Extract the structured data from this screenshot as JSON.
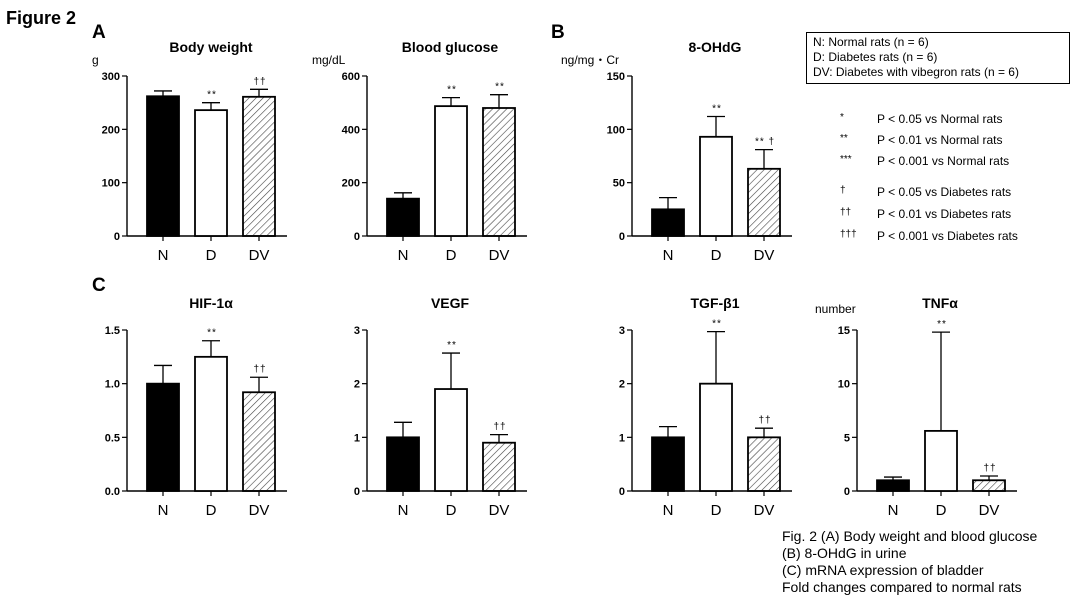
{
  "figure_label": "Figure 2",
  "panel_letters": {
    "a": "A",
    "b": "B",
    "c": "C"
  },
  "legend": {
    "groups": [
      {
        "code": "N",
        "text": "N: Normal rats (n = 6)"
      },
      {
        "code": "D",
        "text": "D: Diabetes rats (n = 6)"
      },
      {
        "code": "DV",
        "text": "DV: Diabetes with vibegron rats (n = 6)"
      }
    ]
  },
  "significance": [
    {
      "symbol": "*",
      "text": "P < 0.05 vs Normal rats"
    },
    {
      "symbol": "**",
      "text": "P < 0.01 vs Normal rats"
    },
    {
      "symbol": "***",
      "text": "P < 0.001 vs Normal rats"
    },
    {
      "symbol": "†",
      "text": "P < 0.05 vs Diabetes rats"
    },
    {
      "symbol": "††",
      "text": "P < 0.01 vs Diabetes rats"
    },
    {
      "symbol": "†††",
      "text": "P < 0.001 vs Diabetes rats"
    }
  ],
  "caption": [
    "Fig. 2 (A) Body weight and blood glucose",
    "(B) 8-OHdG in urine",
    "(C) mRNA expression of bladder",
    "Fold changes compared to normal rats"
  ],
  "colors": {
    "normal": "#000000",
    "diabetes": "#ffffff",
    "vibegron": "hatched",
    "stroke": "#000000"
  },
  "chart_data": [
    {
      "type": "bar",
      "title": "Body weight",
      "ylabel": "g",
      "categories": [
        "N",
        "D",
        "DV"
      ],
      "values": [
        262,
        236,
        261
      ],
      "errors": [
        10,
        14,
        14
      ],
      "ylim": [
        0,
        300
      ],
      "yticks": [
        "0",
        "100",
        "200",
        "300"
      ],
      "annotations": [
        "",
        "**",
        "††"
      ]
    },
    {
      "type": "bar",
      "title": "Blood glucose",
      "ylabel": "mg/dL",
      "categories": [
        "N",
        "D",
        "DV"
      ],
      "values": [
        140,
        487,
        480
      ],
      "errors": [
        22,
        32,
        50
      ],
      "ylim": [
        0,
        600
      ],
      "yticks": [
        "0",
        "200",
        "400",
        "600"
      ],
      "annotations": [
        "",
        "**",
        "**"
      ]
    },
    {
      "type": "bar",
      "title": "8-OHdG",
      "ylabel": "ng/mg・Cr",
      "categories": [
        "N",
        "D",
        "DV"
      ],
      "values": [
        25,
        93,
        63
      ],
      "errors": [
        11,
        19,
        18
      ],
      "ylim": [
        0,
        150
      ],
      "yticks": [
        "0",
        "50",
        "100",
        "150"
      ],
      "annotations": [
        "",
        "**",
        "** †"
      ]
    },
    {
      "type": "bar",
      "title": "HIF-1α",
      "ylabel": "",
      "categories": [
        "N",
        "D",
        "DV"
      ],
      "values": [
        1.0,
        1.25,
        0.92
      ],
      "errors": [
        0.17,
        0.15,
        0.14
      ],
      "ylim": [
        0,
        1.5
      ],
      "yticks": [
        "0.0",
        "0.5",
        "1.0",
        "1.5"
      ],
      "annotations": [
        "",
        "**",
        "††"
      ]
    },
    {
      "type": "bar",
      "title": "VEGF",
      "ylabel": "",
      "categories": [
        "N",
        "D",
        "DV"
      ],
      "values": [
        1.0,
        1.9,
        0.9
      ],
      "errors": [
        0.28,
        0.67,
        0.15
      ],
      "ylim": [
        0,
        3
      ],
      "yticks": [
        "0",
        "1",
        "2",
        "3"
      ],
      "annotations": [
        "",
        "**",
        "††"
      ]
    },
    {
      "type": "bar",
      "title": "TGF-β1",
      "ylabel": "",
      "categories": [
        "N",
        "D",
        "DV"
      ],
      "values": [
        1.0,
        2.0,
        1.0
      ],
      "errors": [
        0.2,
        0.97,
        0.17
      ],
      "ylim": [
        0,
        3
      ],
      "yticks": [
        "0",
        "1",
        "2",
        "3"
      ],
      "annotations": [
        "",
        "**",
        "††"
      ]
    },
    {
      "type": "bar",
      "title": "TNFα",
      "ylabel": "number",
      "categories": [
        "N",
        "D",
        "DV"
      ],
      "values": [
        1.0,
        5.6,
        1.0
      ],
      "errors": [
        0.3,
        9.2,
        0.4
      ],
      "ylim": [
        0,
        15
      ],
      "yticks": [
        "0",
        "5",
        "10",
        "15"
      ],
      "annotations": [
        "",
        "**",
        "††"
      ]
    }
  ]
}
